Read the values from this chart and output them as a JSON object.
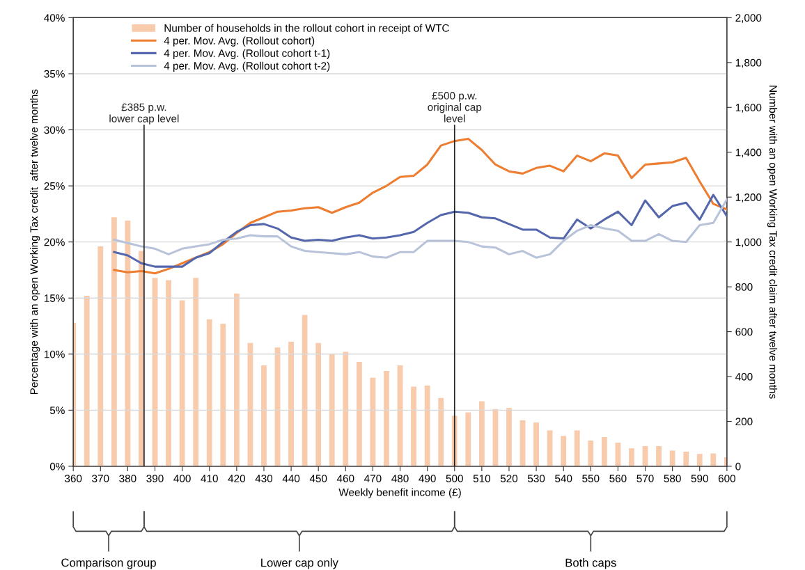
{
  "chart_data": {
    "type": "line",
    "xlabel": "Weekly benefit income (£)",
    "ylabel": "Percentage with an open Working Tax credit  after twelve months",
    "y2label": "Number with an open Working Tax credit claim after twelve months",
    "xlim": [
      360,
      600
    ],
    "xticks": [
      360,
      370,
      380,
      390,
      400,
      410,
      420,
      430,
      440,
      450,
      460,
      470,
      480,
      490,
      500,
      510,
      520,
      530,
      540,
      550,
      560,
      570,
      580,
      590,
      600
    ],
    "ylim": [
      0,
      40
    ],
    "yticks": [
      {
        "value": 0,
        "label": "0%"
      },
      {
        "value": 5,
        "label": "5%"
      },
      {
        "value": 10,
        "label": "10%"
      },
      {
        "value": 15,
        "label": "15%"
      },
      {
        "value": 20,
        "label": "20%"
      },
      {
        "value": 25,
        "label": "25%"
      },
      {
        "value": 30,
        "label": "30%"
      },
      {
        "value": 35,
        "label": "35%"
      },
      {
        "value": 40,
        "label": "40%"
      }
    ],
    "y2lim": [
      0,
      2000
    ],
    "y2ticks": [
      0,
      200,
      400,
      600,
      800,
      {
        "value": 1000,
        "label": "1,000"
      },
      {
        "value": 1200,
        "label": "1,200"
      },
      {
        "value": 1400,
        "label": "1,400"
      },
      {
        "value": 1600,
        "label": "1,600"
      },
      {
        "value": 1800,
        "label": "1,800"
      },
      {
        "value": 2000,
        "label": "2,000"
      }
    ],
    "grid": "y",
    "legend": "top left",
    "ref_lines": [
      {
        "axis": "x",
        "value": 386,
        "label": "£385 p.w.\nlower cap level",
        "color": "#222222"
      },
      {
        "axis": "x",
        "value": 500,
        "label": "£500 p.w.\noriginal cap\nlevel",
        "color": "#222222"
      }
    ],
    "series": [
      {
        "name": "Number of households in the rollout cohort in receipt of WTC",
        "type": "bar",
        "axis": "y2",
        "color": "#f8cbad",
        "x": [
          360,
          365,
          370,
          375,
          380,
          385,
          390,
          395,
          400,
          405,
          410,
          415,
          420,
          425,
          430,
          435,
          440,
          445,
          450,
          455,
          460,
          465,
          470,
          475,
          480,
          485,
          490,
          495,
          500,
          505,
          510,
          515,
          520,
          525,
          530,
          535,
          540,
          545,
          550,
          555,
          560,
          565,
          570,
          575,
          580,
          585,
          590,
          595,
          600
        ],
        "values": [
          640,
          760,
          980,
          1110,
          1095,
          960,
          840,
          830,
          740,
          840,
          655,
          635,
          770,
          550,
          450,
          530,
          555,
          675,
          550,
          500,
          510,
          465,
          395,
          425,
          450,
          355,
          360,
          305,
          225,
          240,
          290,
          255,
          260,
          205,
          195,
          160,
          135,
          160,
          115,
          130,
          105,
          80,
          90,
          90,
          70,
          65,
          55,
          57,
          40
        ]
      },
      {
        "name": "4 per. Mov. Avg. (Rollout cohort)",
        "color": "#ed7d31",
        "x": [
          375,
          380,
          385,
          390,
          395,
          400,
          405,
          410,
          415,
          420,
          425,
          430,
          435,
          440,
          445,
          450,
          455,
          460,
          465,
          470,
          475,
          480,
          485,
          490,
          495,
          500,
          505,
          510,
          515,
          520,
          525,
          530,
          535,
          540,
          545,
          550,
          555,
          560,
          565,
          570,
          575,
          580,
          585,
          590,
          595,
          600
        ],
        "values": [
          17.5,
          17.3,
          17.4,
          17.2,
          17.6,
          18.1,
          18.6,
          19.1,
          19.8,
          20.8,
          21.7,
          22.2,
          22.7,
          22.8,
          23.0,
          23.1,
          22.6,
          23.1,
          23.5,
          24.4,
          25.0,
          25.8,
          25.9,
          26.9,
          28.6,
          29.0,
          29.2,
          28.2,
          26.9,
          26.3,
          26.1,
          26.6,
          26.8,
          26.3,
          27.7,
          27.2,
          27.9,
          27.7,
          25.7,
          26.9,
          27.0,
          27.1,
          27.5,
          25.4,
          23.4,
          22.9
        ]
      },
      {
        "name": "4 per. Mov. Avg. (Rollout cohort t-1)",
        "color": "#5467ad",
        "x": [
          375,
          380,
          385,
          390,
          395,
          400,
          405,
          410,
          415,
          420,
          425,
          430,
          435,
          440,
          445,
          450,
          455,
          460,
          465,
          470,
          475,
          480,
          485,
          490,
          495,
          500,
          505,
          510,
          515,
          520,
          525,
          530,
          535,
          540,
          545,
          550,
          555,
          560,
          565,
          570,
          575,
          580,
          585,
          590,
          595,
          600
        ],
        "values": [
          19.1,
          18.8,
          18.1,
          17.8,
          17.8,
          17.8,
          18.6,
          19.0,
          20.0,
          20.9,
          21.5,
          21.6,
          21.2,
          20.4,
          20.1,
          20.2,
          20.1,
          20.4,
          20.6,
          20.3,
          20.4,
          20.6,
          20.9,
          21.7,
          22.4,
          22.7,
          22.6,
          22.2,
          22.1,
          21.6,
          21.1,
          21.1,
          20.4,
          20.3,
          22.0,
          21.2,
          22.0,
          22.7,
          21.5,
          23.7,
          22.2,
          23.2,
          23.5,
          22.0,
          24.2,
          22.3
        ]
      },
      {
        "name": "4 per. Mov. Avg. (Rollout cohort t-2)",
        "color": "#b8c3da",
        "x": [
          375,
          380,
          385,
          390,
          395,
          400,
          405,
          410,
          415,
          420,
          425,
          430,
          435,
          440,
          445,
          450,
          455,
          460,
          465,
          470,
          475,
          480,
          485,
          490,
          495,
          500,
          505,
          510,
          515,
          520,
          525,
          530,
          535,
          540,
          545,
          550,
          555,
          560,
          565,
          570,
          575,
          580,
          585,
          590,
          595,
          600
        ],
        "values": [
          20.2,
          19.9,
          19.6,
          19.4,
          18.9,
          19.4,
          19.6,
          19.8,
          20.2,
          20.3,
          20.6,
          20.5,
          20.5,
          19.6,
          19.2,
          19.1,
          19.0,
          18.9,
          19.1,
          18.7,
          18.6,
          19.1,
          19.1,
          20.1,
          20.1,
          20.1,
          20.0,
          19.6,
          19.5,
          18.9,
          19.2,
          18.6,
          18.9,
          20.1,
          21.0,
          21.5,
          21.2,
          21.0,
          20.1,
          20.1,
          20.7,
          20.1,
          20.0,
          21.5,
          21.7,
          23.8
        ]
      }
    ],
    "annotations": [
      "Comparison group",
      "Lower cap only",
      "Both caps"
    ]
  }
}
